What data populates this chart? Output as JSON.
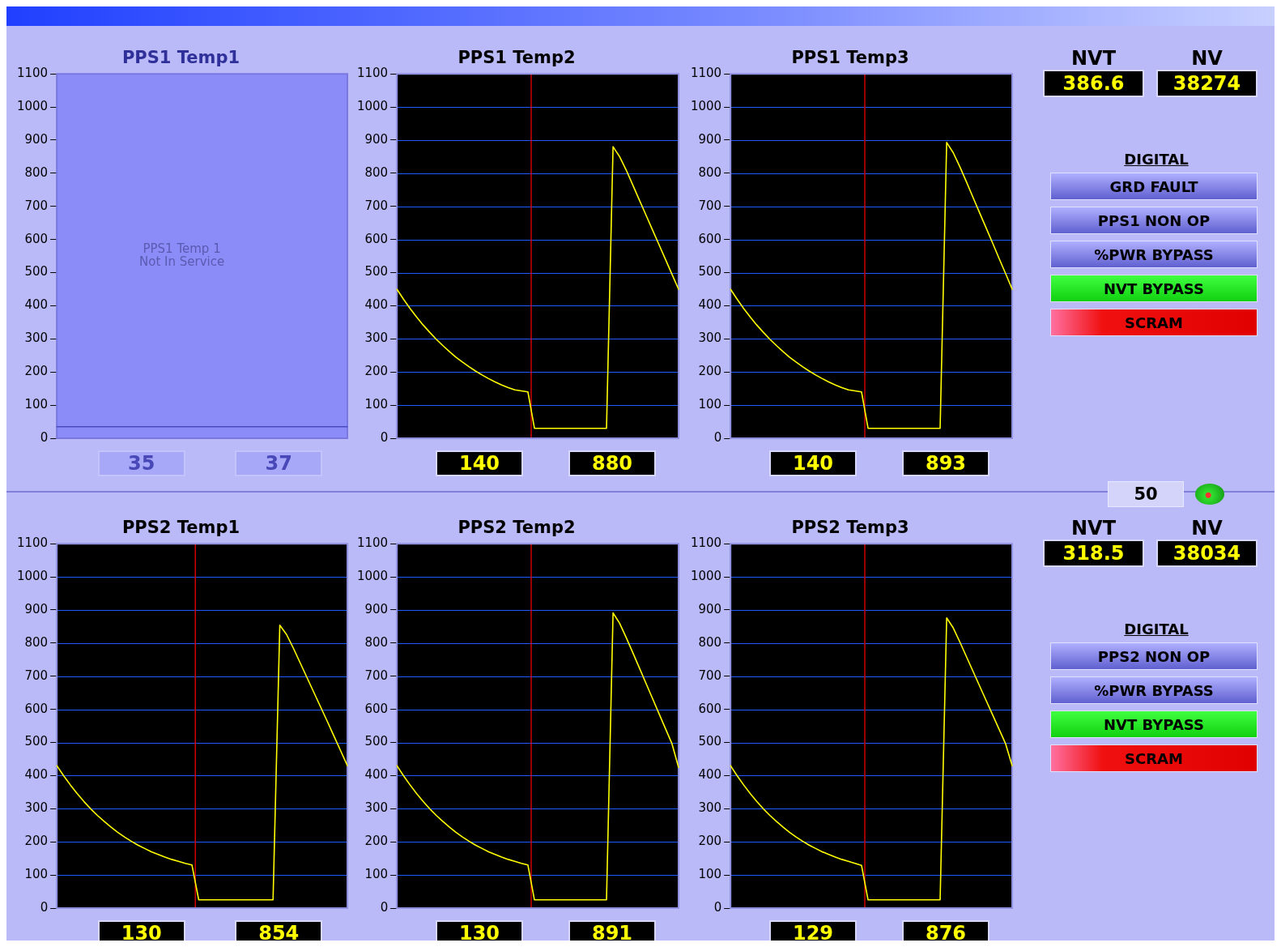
{
  "chart_data": [
    {
      "type": "line",
      "title": "PPS1 Temp1",
      "categories": [
        null,
        null,
        null,
        null,
        null,
        null,
        null,
        null,
        null,
        null,
        null,
        null,
        null,
        null,
        null,
        null,
        null,
        null,
        null,
        null,
        null,
        null,
        null,
        null,
        null,
        null,
        null,
        null,
        null,
        null,
        null,
        null,
        null,
        null,
        null,
        null,
        null,
        null,
        null,
        null,
        null,
        null,
        null,
        null
      ],
      "series": [
        {
          "color": "#4a4ac0",
          "values": [
            35,
            35,
            35,
            35,
            35,
            35,
            35,
            35,
            35,
            35,
            35,
            35,
            35,
            35,
            35,
            35,
            35,
            35,
            35,
            35,
            35,
            35,
            35,
            35,
            35,
            35,
            35,
            35,
            35,
            35,
            35,
            35,
            35,
            35,
            35,
            35,
            35,
            35,
            35,
            35,
            35,
            35,
            35,
            35
          ]
        }
      ],
      "ylim": [
        0,
        1100
      ],
      "yticks": [
        0,
        100,
        200,
        300,
        400,
        500,
        600,
        700,
        800,
        900,
        1000,
        1100
      ],
      "annotations": [
        "PPS1 Temp 1\nNot In Service",
        "35",
        "37"
      ]
    },
    {
      "type": "line",
      "title": "PPS1 Temp2",
      "categories": [
        null,
        null,
        null,
        null,
        null,
        null,
        null,
        null,
        null,
        null,
        null,
        null,
        null,
        null,
        null,
        null,
        null,
        null,
        null,
        null,
        null,
        null,
        null,
        null,
        null,
        null,
        null,
        null,
        null,
        null,
        null,
        null,
        null,
        null,
        null,
        null,
        null,
        null,
        null,
        null,
        null,
        null,
        null,
        null
      ],
      "series": [
        {
          "color": "#ffff00",
          "values": [
            450,
            420,
            392,
            366,
            342,
            320,
            299,
            280,
            262,
            245,
            230,
            216,
            203,
            191,
            180,
            170,
            161,
            153,
            146,
            143,
            140,
            30,
            30,
            30,
            30,
            30,
            30,
            30,
            30,
            30,
            30,
            30,
            30,
            880,
            850,
            810,
            765,
            720,
            675,
            630,
            585,
            540,
            495,
            450
          ]
        }
      ],
      "ylim": [
        0,
        1100
      ],
      "yticks": [
        0,
        100,
        200,
        300,
        400,
        500,
        600,
        700,
        800,
        900,
        1000,
        1100
      ],
      "grid": "y",
      "annotations": [
        "140",
        "880"
      ]
    },
    {
      "type": "line",
      "title": "PPS1 Temp3",
      "categories": [
        null,
        null,
        null,
        null,
        null,
        null,
        null,
        null,
        null,
        null,
        null,
        null,
        null,
        null,
        null,
        null,
        null,
        null,
        null,
        null,
        null,
        null,
        null,
        null,
        null,
        null,
        null,
        null,
        null,
        null,
        null,
        null,
        null,
        null,
        null,
        null,
        null,
        null,
        null,
        null,
        null,
        null,
        null,
        null
      ],
      "series": [
        {
          "color": "#ffff00",
          "values": [
            450,
            420,
            392,
            366,
            342,
            320,
            299,
            280,
            262,
            245,
            230,
            216,
            203,
            191,
            180,
            170,
            161,
            153,
            146,
            143,
            140,
            30,
            30,
            30,
            30,
            30,
            30,
            30,
            30,
            30,
            30,
            30,
            30,
            893,
            862,
            820,
            775,
            728,
            682,
            636,
            590,
            543,
            497,
            450
          ]
        }
      ],
      "ylim": [
        0,
        1100
      ],
      "yticks": [
        0,
        100,
        200,
        300,
        400,
        500,
        600,
        700,
        800,
        900,
        1000,
        1100
      ],
      "grid": "y",
      "annotations": [
        "140",
        "893"
      ]
    },
    {
      "type": "other",
      "annotations": [
        "NVT",
        "386.6",
        "NV",
        "38274",
        "DIGITAL",
        "GRD FAULT",
        "PPS1 NON OP",
        "%PWR BYPASS",
        "NVT BYPASS",
        "SCRAM"
      ]
    },
    {
      "type": "line",
      "title": "PPS2 Temp1",
      "categories": [
        null,
        null,
        null,
        null,
        null,
        null,
        null,
        null,
        null,
        null,
        null,
        null,
        null,
        null,
        null,
        null,
        null,
        null,
        null,
        null,
        null,
        null,
        null,
        null,
        null,
        null,
        null,
        null,
        null,
        null,
        null,
        null,
        null,
        null,
        null,
        null,
        null,
        null,
        null,
        null,
        null,
        null,
        null,
        null
      ],
      "series": [
        {
          "color": "#ffff00",
          "values": [
            430,
            400,
            372,
            346,
            322,
            300,
            280,
            262,
            245,
            229,
            215,
            202,
            190,
            180,
            170,
            162,
            154,
            147,
            141,
            135,
            130,
            25,
            25,
            25,
            25,
            25,
            25,
            25,
            25,
            25,
            25,
            25,
            25,
            854,
            826,
            785,
            741,
            697,
            653,
            609,
            565,
            520,
            475,
            430
          ]
        }
      ],
      "ylim": [
        0,
        1100
      ],
      "yticks": [
        0,
        100,
        200,
        300,
        400,
        500,
        600,
        700,
        800,
        900,
        1000,
        1100
      ],
      "grid": "y",
      "annotations": [
        "130",
        "854"
      ]
    },
    {
      "type": "line",
      "title": "PPS2 Temp2",
      "categories": [
        null,
        null,
        null,
        null,
        null,
        null,
        null,
        null,
        null,
        null,
        null,
        null,
        null,
        null,
        null,
        null,
        null,
        null,
        null,
        null,
        null,
        null,
        null,
        null,
        null,
        null,
        null,
        null,
        null,
        null,
        null,
        null,
        null,
        null,
        null,
        null,
        null,
        null,
        null,
        null,
        null,
        null,
        null,
        null
      ],
      "series": [
        {
          "color": "#ffff00",
          "values": [
            430,
            400,
            372,
            346,
            322,
            300,
            280,
            262,
            245,
            229,
            215,
            202,
            190,
            180,
            170,
            162,
            154,
            147,
            141,
            135,
            130,
            25,
            25,
            25,
            25,
            25,
            25,
            25,
            25,
            25,
            25,
            25,
            25,
            891,
            860,
            817,
            772,
            726,
            680,
            634,
            588,
            542,
            496,
            425
          ]
        }
      ],
      "ylim": [
        0,
        1100
      ],
      "yticks": [
        0,
        100,
        200,
        300,
        400,
        500,
        600,
        700,
        800,
        900,
        1000,
        1100
      ],
      "grid": "y",
      "annotations": [
        "130",
        "891"
      ]
    },
    {
      "type": "line",
      "title": "PPS2 Temp3",
      "categories": [
        null,
        null,
        null,
        null,
        null,
        null,
        null,
        null,
        null,
        null,
        null,
        null,
        null,
        null,
        null,
        null,
        null,
        null,
        null,
        null,
        null,
        null,
        null,
        null,
        null,
        null,
        null,
        null,
        null,
        null,
        null,
        null,
        null,
        null,
        null,
        null,
        null,
        null,
        null,
        null,
        null,
        null,
        null,
        null
      ],
      "series": [
        {
          "color": "#ffff00",
          "values": [
            430,
            400,
            372,
            346,
            322,
            300,
            280,
            262,
            245,
            229,
            215,
            202,
            190,
            180,
            170,
            162,
            154,
            147,
            141,
            135,
            129,
            25,
            25,
            25,
            25,
            25,
            25,
            25,
            25,
            25,
            25,
            25,
            25,
            876,
            846,
            804,
            760,
            716,
            672,
            628,
            584,
            540,
            496,
            430
          ]
        }
      ],
      "ylim": [
        0,
        1100
      ],
      "yticks": [
        0,
        100,
        200,
        300,
        400,
        500,
        600,
        700,
        800,
        900,
        1000,
        1100
      ],
      "grid": "y",
      "annotations": [
        "129",
        "876"
      ]
    },
    {
      "type": "other",
      "annotations": [
        "NVT",
        "318.5",
        "NV",
        "38034",
        "DIGITAL",
        "PPS2 NON OP",
        "%PWR BYPASS",
        "NVT BYPASS",
        "SCRAM"
      ]
    },
    {
      "type": "other",
      "annotations": [
        "50"
      ]
    }
  ]
}
